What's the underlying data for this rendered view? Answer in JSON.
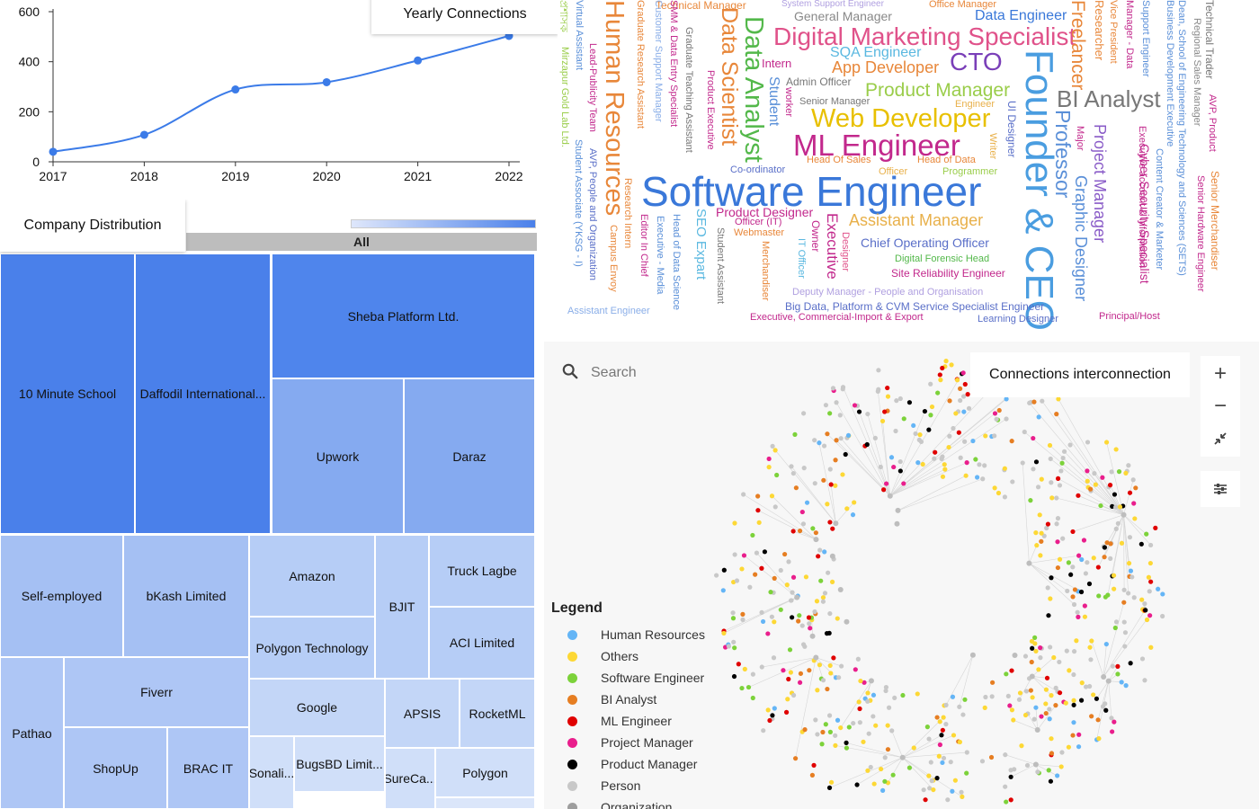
{
  "line_panel": {
    "title": "Yearly Connections"
  },
  "treemap_panel": {
    "title": "Company Distribution",
    "root_label": "All"
  },
  "network_panel": {
    "title": "Connections interconnection",
    "search": {
      "placeholder": "Search"
    },
    "controls": {
      "zoom_in": "+",
      "zoom_out": "−"
    },
    "legend": {
      "title": "Legend",
      "items": [
        {
          "label": "Human Resources",
          "color": "#64b5f6"
        },
        {
          "label": "Others",
          "color": "#fdd835"
        },
        {
          "label": "Software Engineer",
          "color": "#7cd23a"
        },
        {
          "label": "BI Analyst",
          "color": "#e67e22"
        },
        {
          "label": "ML Engineer",
          "color": "#e00000"
        },
        {
          "label": "Project Manager",
          "color": "#e91e8c"
        },
        {
          "label": "Product Manager",
          "color": "#000000"
        },
        {
          "label": "Person",
          "color": "#c8c8c8"
        },
        {
          "label": "Organization",
          "color": "#9e9e9e"
        }
      ]
    }
  },
  "chart_data": [
    {
      "type": "line",
      "title": "Yearly Connections",
      "x": [
        "2017",
        "2018",
        "2019",
        "2020",
        "2021",
        "2022"
      ],
      "series": [
        {
          "values": [
            40,
            108,
            289,
            318,
            405,
            503
          ]
        }
      ],
      "ylim": [
        0,
        600
      ],
      "yticks": [
        0,
        200,
        400,
        600
      ],
      "color": "#3b7be8",
      "grid": false
    },
    {
      "type": "treemap",
      "title": "Company Distribution",
      "root": "All",
      "color_low": "#dfe7fb",
      "color_high": "#4a80ea",
      "items": [
        {
          "label": "10 Minute School",
          "color": "#4a80ea"
        },
        {
          "label": "Daffodil International...",
          "color": "#4a80ea"
        },
        {
          "label": "Sheba Platform Ltd.",
          "color": "#4f85ec"
        },
        {
          "label": "Upwork",
          "color": "#85aaf0"
        },
        {
          "label": "Daraz",
          "color": "#85aaf0"
        },
        {
          "label": "Self-employed",
          "color": "#a5c0f3"
        },
        {
          "label": "bKash Limited",
          "color": "#a5c0f3"
        },
        {
          "label": "Amazon",
          "color": "#b6cdf6"
        },
        {
          "label": "BJIT",
          "color": "#b6cdf6"
        },
        {
          "label": "Truck Lagbe",
          "color": "#b6cdf6"
        },
        {
          "label": "Polygon Technology",
          "color": "#b6cdf6"
        },
        {
          "label": "ACI Limited",
          "color": "#b6cdf6"
        },
        {
          "label": "Pathao",
          "color": "#aec6f5"
        },
        {
          "label": "Fiverr",
          "color": "#aec6f5"
        },
        {
          "label": "ShopUp",
          "color": "#aec6f5"
        },
        {
          "label": "BRAC IT",
          "color": "#aec6f5"
        },
        {
          "label": "Google",
          "color": "#c3d6f7"
        },
        {
          "label": "APSIS",
          "color": "#c3d6f7"
        },
        {
          "label": "RocketML",
          "color": "#c3d6f7"
        },
        {
          "label": "BugsBD Limit...",
          "color": "#d0dff9"
        },
        {
          "label": "Sonali...",
          "color": "#d0dff9"
        },
        {
          "label": "SureCa...",
          "color": "#d0dff9"
        },
        {
          "label": "Polygon",
          "color": "#d0dff9"
        }
      ]
    },
    {
      "type": "wordcloud",
      "words": [
        {
          "text": "Software Engineer",
          "color": "#3a78d9"
        },
        {
          "text": "Founder & CEO",
          "color": "#4a9de0"
        },
        {
          "text": "Digital Marketing Specialist",
          "color": "#e0528a"
        },
        {
          "text": "ML Engineer",
          "color": "#c2288c"
        },
        {
          "text": "Web Developer",
          "color": "#e8c000"
        },
        {
          "text": "Data Analyst",
          "color": "#53b84a"
        },
        {
          "text": "Data Scientist",
          "color": "#e8873a"
        },
        {
          "text": "Human Resources",
          "color": "#e8873a"
        },
        {
          "text": "CTO",
          "color": "#7a3fb8"
        },
        {
          "text": "BI Analyst",
          "color": "#777777"
        },
        {
          "text": "Professor",
          "color": "#5a8fd8"
        },
        {
          "text": "Freelancer",
          "color": "#e8873a"
        },
        {
          "text": "Product Manager",
          "color": "#9acd4a"
        },
        {
          "text": "App Developer",
          "color": "#e8873a"
        },
        {
          "text": "Project Manager",
          "color": "#8a5cc8"
        },
        {
          "text": "Graphic Designer",
          "color": "#5a8fd8"
        },
        {
          "text": "Assistant Manager",
          "color": "#e8b04a"
        },
        {
          "text": "Data Engineer",
          "color": "#3a78d9"
        },
        {
          "text": "SQA Engineer",
          "color": "#5ab8e0"
        },
        {
          "text": "General Manager",
          "color": "#888888"
        },
        {
          "text": "Chief Operating Officer",
          "color": "#5a6fc8"
        },
        {
          "text": "Intern",
          "color": "#c2288c"
        },
        {
          "text": "Admin Officer",
          "color": "#777777"
        },
        {
          "text": "Senior Manager",
          "color": "#777777"
        },
        {
          "text": "Student",
          "color": "#5a8fd8"
        },
        {
          "text": "Executive",
          "color": "#c2288c"
        },
        {
          "text": "Product Designer",
          "color": "#c2288c"
        },
        {
          "text": "Cyber Security Specialist",
          "color": "#c2288c"
        },
        {
          "text": "Big Data, Platform & CVM Service Specialist Engineer",
          "color": "#5a6fc8"
        },
        {
          "text": "Deputy Manager - People and Organisation",
          "color": "#b0a0e0"
        },
        {
          "text": "Learning Designer",
          "color": "#5a6fc8"
        },
        {
          "text": "Executive, Commercial-Import & Export",
          "color": "#c2288c"
        },
        {
          "text": "Site Reliability Engineer",
          "color": "#c2288c"
        },
        {
          "text": "Digital Forensic Head",
          "color": "#53b84a"
        },
        {
          "text": "Principal/Host",
          "color": "#c2288c"
        },
        {
          "text": "Assistant Engineer",
          "color": "#8aaee8"
        },
        {
          "text": "Head Of Sales",
          "color": "#e8873a"
        },
        {
          "text": "Head of Data",
          "color": "#e8873a"
        },
        {
          "text": "Programmer",
          "color": "#9acd4a"
        },
        {
          "text": "Officer",
          "color": "#e8b04a"
        },
        {
          "text": "Co-ordinator",
          "color": "#5a6fc8"
        },
        {
          "text": "Officer (IT)",
          "color": "#c2288c"
        },
        {
          "text": "Webmaster",
          "color": "#e8873a"
        },
        {
          "text": "Engineer",
          "color": "#e8b04a"
        },
        {
          "text": "Technical Manager",
          "color": "#e8873a"
        },
        {
          "text": "System Support Engineer",
          "color": "#b0a0e0"
        },
        {
          "text": "Office Manager",
          "color": "#e8873a"
        },
        {
          "text": "UI Designer",
          "color": "#5a6fc8"
        },
        {
          "text": "Writer",
          "color": "#e8b04a"
        },
        {
          "text": "Major",
          "color": "#c2288c"
        },
        {
          "text": "Researcher",
          "color": "#e8873a"
        },
        {
          "text": "Vice President",
          "color": "#e8873a"
        },
        {
          "text": "Manager - Data",
          "color": "#c2288c"
        },
        {
          "text": "Support Engineer",
          "color": "#5a8fd8"
        },
        {
          "text": "Business Development Executive",
          "color": "#5a8fd8"
        },
        {
          "text": "Dean, School of Engineering Technology and Sciences (SETS)",
          "color": "#5a8fd8"
        },
        {
          "text": "Technical Trader",
          "color": "#777777"
        },
        {
          "text": "Regional Sales Manager",
          "color": "#888888"
        },
        {
          "text": "AVP, Product",
          "color": "#c2288c"
        },
        {
          "text": "Senior Merchandiser",
          "color": "#e8873a"
        },
        {
          "text": "Senior Hardware Engineer",
          "color": "#c2288c"
        },
        {
          "text": "Executive account & Information",
          "color": "#c2288c"
        },
        {
          "text": "Content Creator & Marketer",
          "color": "#5a8fd8"
        },
        {
          "text": "Graduate Research Assistant",
          "color": "#e8873a"
        },
        {
          "text": "SMM & Data Entry Specialist",
          "color": "#c2288c"
        },
        {
          "text": "Customer Support Manager",
          "color": "#8aaee8"
        },
        {
          "text": "Graduate Teaching Assistant",
          "color": "#777777"
        },
        {
          "text": "Product Executive",
          "color": "#c2288c"
        },
        {
          "text": "worker",
          "color": "#c2288c"
        },
        {
          "text": "Virtual Assistant",
          "color": "#5a8fd8"
        },
        {
          "text": "Lead-Publicity Team",
          "color": "#c2288c"
        },
        {
          "text": "Mirzapur Gold Lab Ltd.",
          "color": "#9acd4a"
        },
        {
          "text": "Student Associate (YKSG - I)",
          "color": "#5a8fd8"
        },
        {
          "text": "AVP, People and Organization",
          "color": "#5a6fc8"
        },
        {
          "text": "Campus Envoy",
          "color": "#e8873a"
        },
        {
          "text": "Research Intern",
          "color": "#e8873a"
        },
        {
          "text": "Editor In Chief",
          "color": "#c2288c"
        },
        {
          "text": "Executive - Media",
          "color": "#5a8fd8"
        },
        {
          "text": "Head of Data Science",
          "color": "#5a8fd8"
        },
        {
          "text": "SEO Expart",
          "color": "#5ab8e0"
        },
        {
          "text": "Student Assistant",
          "color": "#777777"
        },
        {
          "text": "Merchandiser",
          "color": "#e8873a"
        },
        {
          "text": "IT Officer",
          "color": "#5ab8e0"
        },
        {
          "text": "Owner",
          "color": "#c2288c"
        },
        {
          "text": "Designer",
          "color": "#e0528a"
        },
        {
          "text": "প্রশাসক",
          "color": "#9acd4a"
        }
      ]
    }
  ]
}
